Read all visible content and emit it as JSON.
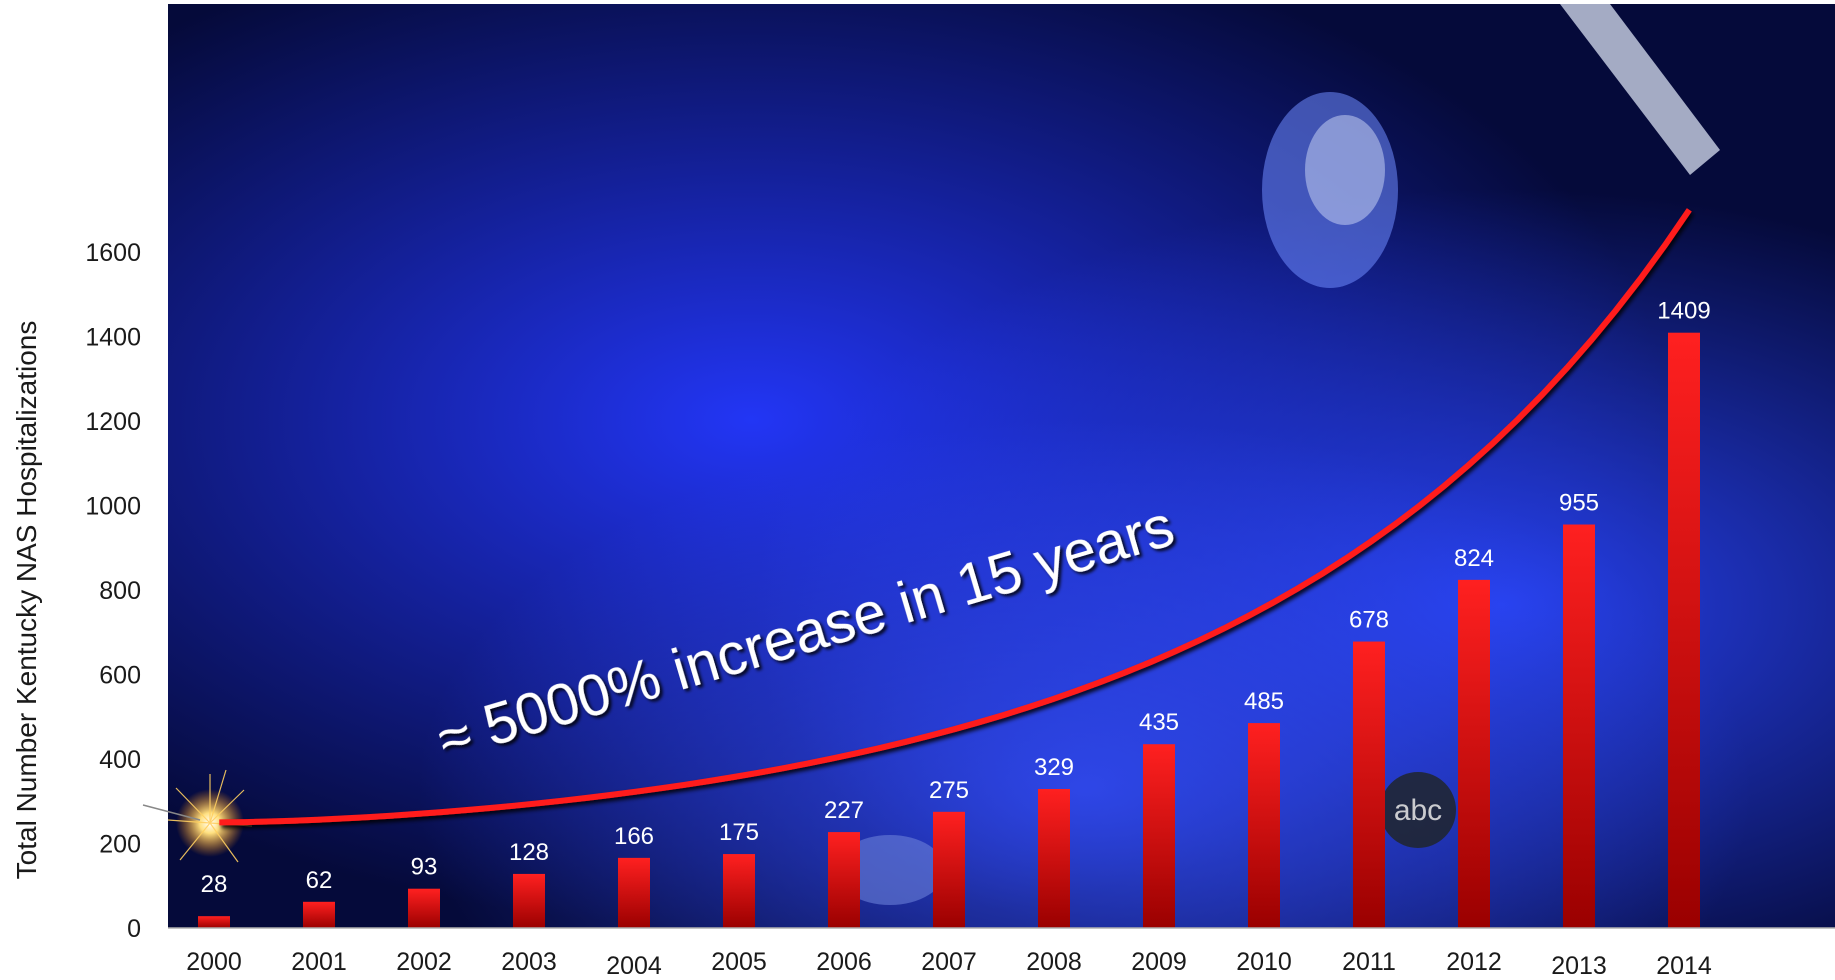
{
  "chart_data": {
    "type": "bar",
    "ylabel": "Total Number Kentucky NAS Hospitalizations",
    "xlabel": "",
    "categories": [
      "2000",
      "2001",
      "2002",
      "2003",
      "2004",
      "2005",
      "2006",
      "2007",
      "2008",
      "2009",
      "2010",
      "2011",
      "2012",
      "2013",
      "2014"
    ],
    "values": [
      28,
      62,
      93,
      128,
      166,
      175,
      227,
      275,
      329,
      435,
      485,
      678,
      824,
      955,
      1409
    ],
    "yticks": [
      0,
      200,
      400,
      600,
      800,
      1000,
      1200,
      1400,
      1600
    ],
    "ylim": [
      0,
      2200
    ],
    "annotation": "≈ 5000% increase in 15 years",
    "trend_curve": {
      "x_start": "2000",
      "y_start": 250,
      "x_end": "2014",
      "y_end": 1700
    },
    "grid": false,
    "colors": {
      "bar_top": "#ff2020",
      "bar_bottom": "#9a0000",
      "curve": "#ff1a1a",
      "background_dark": "#050a3a",
      "background_blue": "#1a2fe0",
      "label_white": "#ffffff",
      "label_dark": "#1a1a1a"
    }
  }
}
